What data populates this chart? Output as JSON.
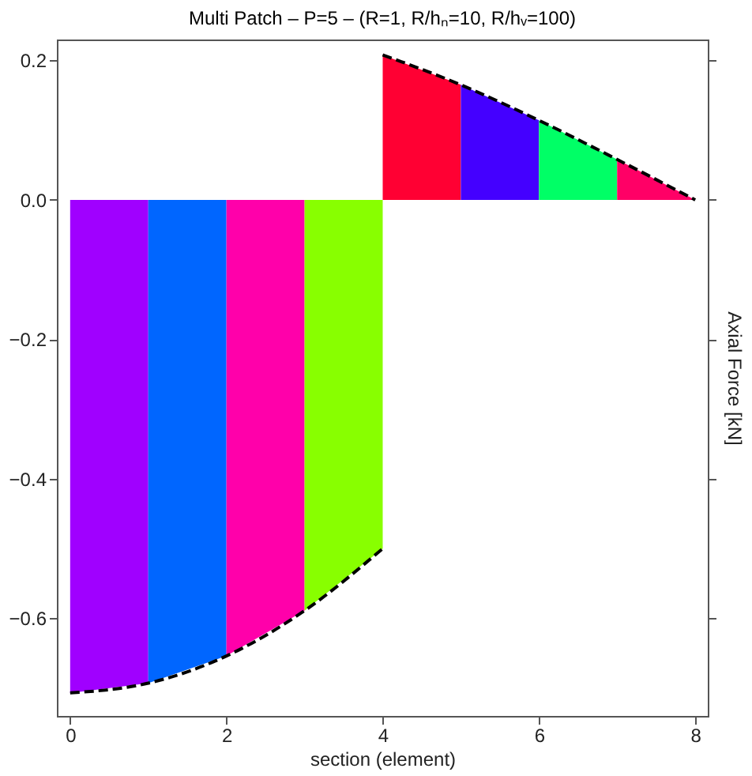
{
  "chart_data": {
    "type": "area",
    "title": "Multi Patch – P=5 – (R=1, R/hₙ=10, R/hᵥ=100)",
    "xlabel": "section (element)",
    "ylabel": "Axial Force [kN]",
    "xlim": [
      -0.17,
      8.16
    ],
    "xticks": [
      0,
      2,
      4,
      6,
      8
    ],
    "ylim": [
      -0.74,
      0.23
    ],
    "yticks": [
      {
        "value": -0.6,
        "label": "−0.6"
      },
      {
        "value": -0.4,
        "label": "−0.4"
      },
      {
        "value": -0.2,
        "label": "−0.2"
      },
      {
        "value": 0.0,
        "label": "0.0"
      },
      0.2
    ],
    "grid": false,
    "series": [
      {
        "color": "#a000ff",
        "x": [
          0,
          1
        ],
        "values": [
          -0.707,
          -0.693
        ]
      },
      {
        "color": "#0066ff",
        "x": [
          1,
          2
        ],
        "values": [
          -0.693,
          -0.654
        ]
      },
      {
        "color": "#ff00aa",
        "x": [
          2,
          3
        ],
        "values": [
          -0.654,
          -0.589
        ]
      },
      {
        "color": "#88ff00",
        "x": [
          3,
          4
        ],
        "values": [
          -0.589,
          -0.5
        ]
      },
      {
        "color": "#ff0033",
        "x": [
          4,
          5
        ],
        "values": [
          0.208,
          0.165
        ]
      },
      {
        "color": "#4400ff",
        "x": [
          5,
          6
        ],
        "values": [
          0.165,
          0.114
        ]
      },
      {
        "color": "#00ff66",
        "x": [
          6,
          7
        ],
        "values": [
          0.114,
          0.058
        ]
      },
      {
        "color": "#ff0066",
        "x": [
          7,
          8
        ],
        "values": [
          0.058,
          0.0
        ]
      },
      {
        "type": "line",
        "color": "#000000",
        "line_style": "dashed",
        "x": [
          0,
          1,
          2,
          3,
          4
        ],
        "values": [
          -0.707,
          -0.693,
          -0.654,
          -0.589,
          -0.5
        ]
      },
      {
        "type": "line",
        "color": "#000000",
        "line_style": "dashed",
        "x": [
          4,
          5,
          6,
          7,
          8
        ],
        "values": [
          0.208,
          0.165,
          0.114,
          0.058,
          0.0
        ]
      }
    ]
  }
}
